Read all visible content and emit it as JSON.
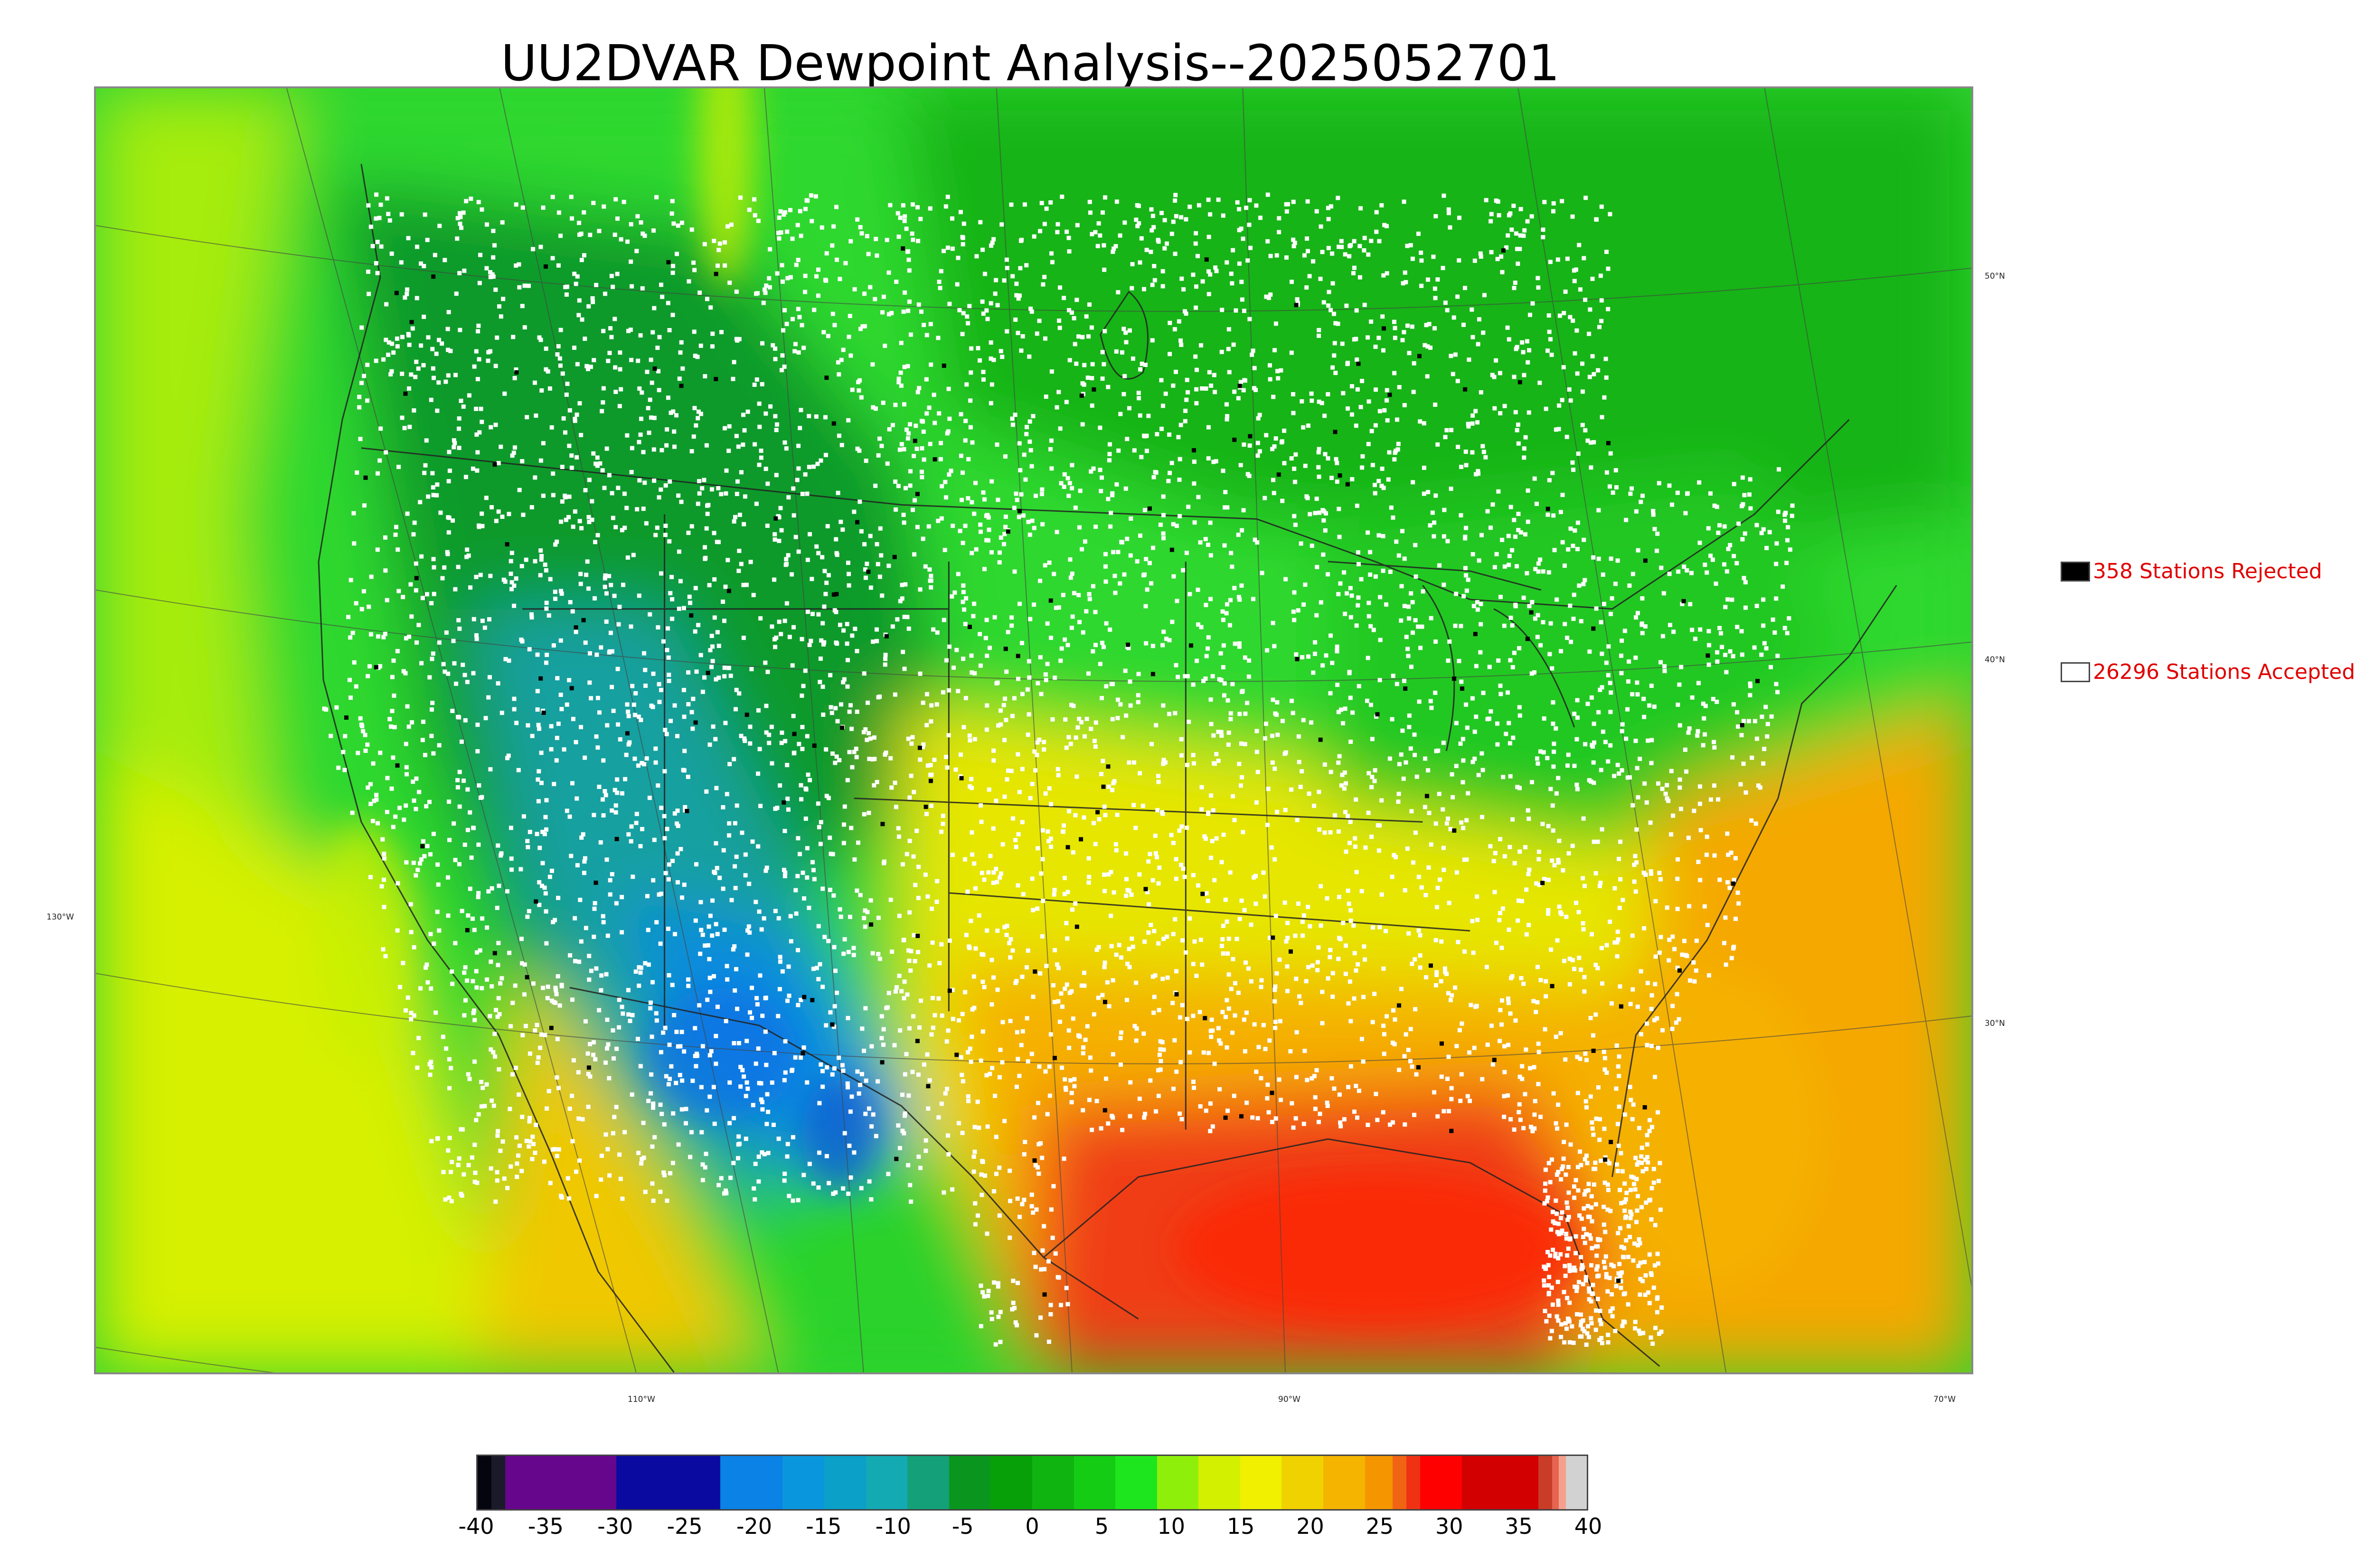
{
  "title": "UU2DVAR Dewpoint Analysis--2025052701",
  "map": {
    "lat_labels": [
      "50°N",
      "40°N",
      "30°N"
    ],
    "lon_labels": [
      "130°W",
      "110°W",
      "90°W",
      "70°W"
    ],
    "station_colors": {
      "accepted": "#ffffff",
      "rejected": "#000000"
    }
  },
  "legend": {
    "rejected": {
      "label": "358 Stations Rejected",
      "count": 358,
      "color": "#000000"
    },
    "accepted": {
      "label": "26296 Stations Accepted",
      "count": 26296,
      "color": "#ffffff"
    }
  },
  "colorbar": {
    "min": -40,
    "max": 40,
    "ticks": [
      "-40",
      "-35",
      "-30",
      "-25",
      "-20",
      "-15",
      "-10",
      "-5",
      "0",
      "5",
      "10",
      "15",
      "20",
      "25",
      "30",
      "35",
      "40"
    ],
    "segments": [
      {
        "from": -40,
        "to": -39,
        "color": "#05050f"
      },
      {
        "from": -39,
        "to": -38,
        "color": "#1a1a2a"
      },
      {
        "from": -38,
        "to": -30,
        "color": "#66068c"
      },
      {
        "from": -30,
        "to": -22.5,
        "color": "#0a0aa0"
      },
      {
        "from": -22.5,
        "to": -18,
        "color": "#0a82e6"
      },
      {
        "from": -18,
        "to": -15,
        "color": "#0a96dc"
      },
      {
        "from": -15,
        "to": -12,
        "color": "#0aa0c8"
      },
      {
        "from": -12,
        "to": -9,
        "color": "#14aab4"
      },
      {
        "from": -9,
        "to": -6,
        "color": "#14a078"
      },
      {
        "from": -6,
        "to": -3,
        "color": "#0a961e"
      },
      {
        "from": -3,
        "to": 0,
        "color": "#08a008"
      },
      {
        "from": 0,
        "to": 3,
        "color": "#10b410"
      },
      {
        "from": 3,
        "to": 6,
        "color": "#14cc14"
      },
      {
        "from": 6,
        "to": 9,
        "color": "#1ee61e"
      },
      {
        "from": 9,
        "to": 12,
        "color": "#8ef00a"
      },
      {
        "from": 12,
        "to": 15,
        "color": "#d2f000"
      },
      {
        "from": 15,
        "to": 18,
        "color": "#f0f000"
      },
      {
        "from": 18,
        "to": 21,
        "color": "#f0d200"
      },
      {
        "from": 21,
        "to": 24,
        "color": "#f5b400"
      },
      {
        "from": 24,
        "to": 26,
        "color": "#f59600"
      },
      {
        "from": 26,
        "to": 27,
        "color": "#f06414"
      },
      {
        "from": 27,
        "to": 28,
        "color": "#f03214"
      },
      {
        "from": 28,
        "to": 31,
        "color": "#ff0000"
      },
      {
        "from": 31,
        "to": 36.5,
        "color": "#d20000"
      },
      {
        "from": 36.5,
        "to": 37.5,
        "color": "#c83c28"
      },
      {
        "from": 37.5,
        "to": 38,
        "color": "#e66450"
      },
      {
        "from": 38,
        "to": 38.5,
        "color": "#f5a08c"
      },
      {
        "from": 38.5,
        "to": 40,
        "color": "#d2d2d2"
      }
    ]
  }
}
